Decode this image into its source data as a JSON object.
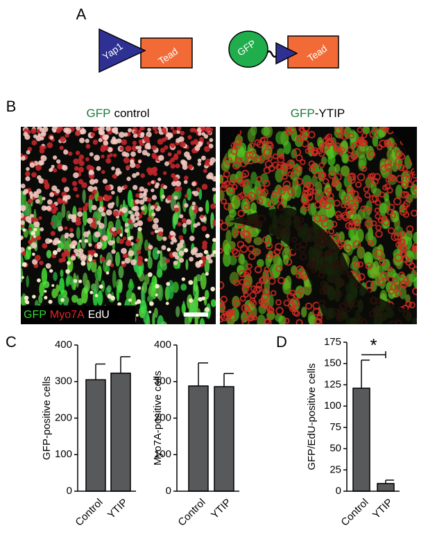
{
  "panels": {
    "labels": [
      "A",
      "B",
      "C",
      "D"
    ],
    "diagram": {
      "left": [
        "Yap1",
        "Tead"
      ],
      "right": [
        "GFP",
        "Tead"
      ]
    },
    "images": {
      "titles": [
        [
          "GFP",
          "control"
        ],
        [
          "GFP",
          "-YTIP"
        ]
      ],
      "legend": [
        "GFP",
        "Myo7A",
        "EdU"
      ]
    }
  },
  "chart_data": [
    {
      "type": "bar",
      "ylabel": "GFP-positive cells",
      "categories": [
        "Control",
        "YTIP"
      ],
      "values": [
        305,
        323
      ],
      "errors": [
        43,
        45
      ],
      "color": "#58595b",
      "ylim": [
        0,
        400
      ],
      "yticks": [
        0,
        100,
        200,
        300,
        400
      ]
    },
    {
      "type": "bar",
      "ylabel": "Myo7A-positive cells",
      "categories": [
        "Control",
        "YTIP"
      ],
      "values": [
        288,
        286
      ],
      "errors": [
        63,
        36
      ],
      "color": "#58595b",
      "ylim": [
        0,
        400
      ],
      "yticks": [
        0,
        100,
        200,
        300,
        400
      ]
    },
    {
      "type": "bar",
      "ylabel": "GFP/EdU-positive cells",
      "categories": [
        "Control",
        "YTIP"
      ],
      "values": [
        121,
        9
      ],
      "errors": [
        33,
        4
      ],
      "color": "#58595b",
      "ylim": [
        0,
        175
      ],
      "yticks": [
        0,
        25,
        50,
        75,
        100,
        125,
        150,
        175
      ],
      "annotation": "*"
    }
  ]
}
